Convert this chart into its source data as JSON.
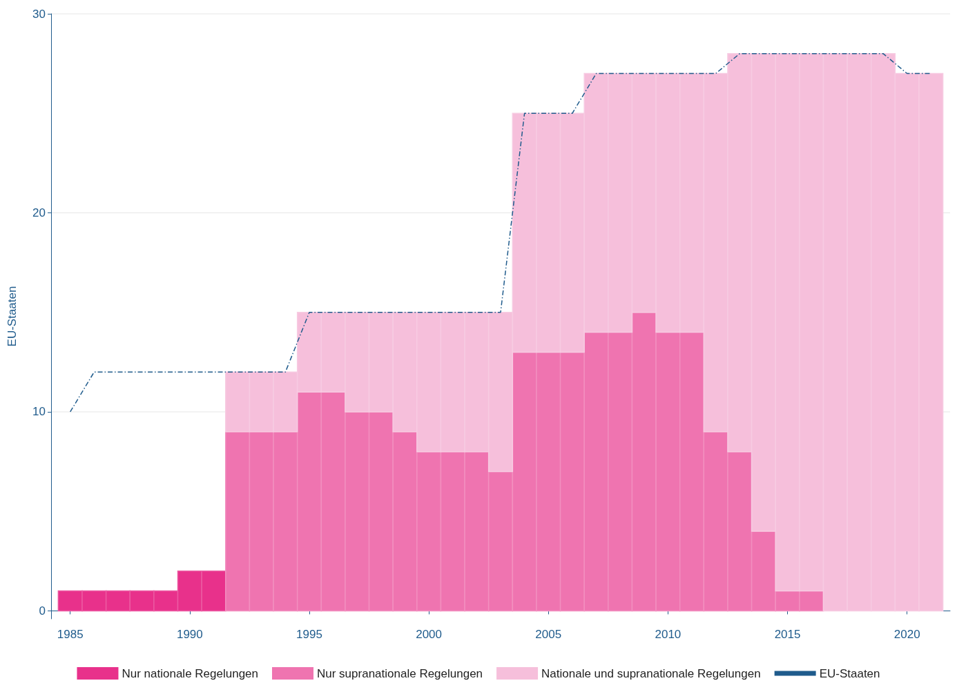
{
  "chart_data": {
    "type": "bar",
    "stacked": true,
    "ylabel": "EU-Staaten",
    "x": [
      1985,
      1986,
      1987,
      1988,
      1989,
      1990,
      1991,
      1992,
      1993,
      1994,
      1995,
      1996,
      1997,
      1998,
      1999,
      2000,
      2001,
      2002,
      2003,
      2004,
      2005,
      2006,
      2007,
      2008,
      2009,
      2010,
      2011,
      2012,
      2013,
      2014,
      2015,
      2016,
      2017,
      2018,
      2019,
      2020,
      2021
    ],
    "series": [
      {
        "name": "Nur nationale Regelungen",
        "color": "#e8318b",
        "values": [
          1,
          1,
          1,
          1,
          1,
          2,
          2,
          0,
          0,
          0,
          0,
          0,
          0,
          0,
          0,
          0,
          0,
          0,
          0,
          0,
          0,
          0,
          0,
          0,
          0,
          0,
          0,
          0,
          0,
          0,
          0,
          0,
          0,
          0,
          0,
          0,
          0
        ]
      },
      {
        "name": "Nur supranationale Regelungen",
        "color": "#ef74b0",
        "values": [
          0,
          0,
          0,
          0,
          0,
          0,
          0,
          9,
          9,
          9,
          11,
          11,
          10,
          10,
          9,
          8,
          8,
          8,
          7,
          13,
          13,
          13,
          14,
          14,
          15,
          14,
          14,
          9,
          8,
          4,
          1,
          1,
          0,
          0,
          0,
          0,
          0
        ]
      },
      {
        "name": "Nationale und supranationale Regelungen",
        "color": "#f6bfdb",
        "values": [
          0,
          0,
          0,
          0,
          0,
          0,
          0,
          3,
          3,
          3,
          4,
          4,
          5,
          5,
          6,
          7,
          7,
          7,
          8,
          12,
          12,
          12,
          13,
          13,
          12,
          13,
          13,
          18,
          20,
          24,
          27,
          27,
          28,
          28,
          28,
          27,
          27
        ]
      },
      {
        "name": "EU-Staaten",
        "type": "line",
        "color": "#1f5b8c",
        "line_style": "dashed",
        "marker": "none",
        "values": [
          10,
          12,
          12,
          12,
          12,
          12,
          12,
          12,
          12,
          12,
          15,
          15,
          15,
          15,
          15,
          15,
          15,
          15,
          15,
          25,
          25,
          25,
          27,
          27,
          27,
          27,
          27,
          27,
          28,
          28,
          28,
          28,
          28,
          28,
          28,
          27,
          27
        ]
      }
    ],
    "xlim": [
      1984.2,
      2021.8
    ],
    "xticks": [
      1985,
      1990,
      1995,
      2000,
      2005,
      2010,
      2015,
      2020
    ],
    "ylim": [
      -0.4,
      30
    ],
    "yticks": [
      0,
      10,
      20,
      30
    ],
    "grid": "y",
    "legend": "bottom"
  }
}
